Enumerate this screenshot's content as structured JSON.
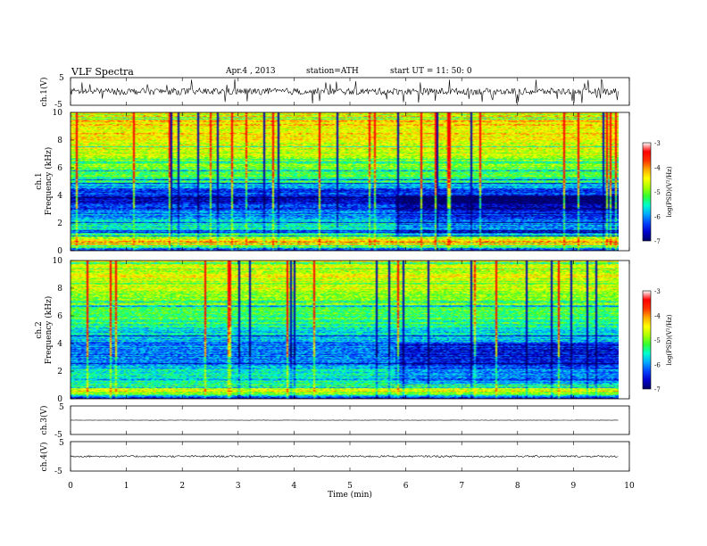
{
  "header": {
    "title": "VLF  Spectra",
    "date": "Apr.4  , 2013",
    "station": "station=ATH",
    "start": "start  UT  =   11: 50: 0"
  },
  "colors": {
    "colormap": [
      "#000066",
      "#0000cc",
      "#0044ff",
      "#00aaff",
      "#00ffcc",
      "#33ff33",
      "#aaff00",
      "#ffff00",
      "#ffaa00",
      "#ff3300",
      "#ff0000",
      "#ffffff"
    ],
    "trace": "#000000"
  },
  "chart_data": [
    {
      "type": "line",
      "panel": "ch.1",
      "ylabel": "ch.1(V)",
      "yticks": [
        "5",
        "-5"
      ],
      "ylim": [
        -5,
        5
      ],
      "xlim": [
        0,
        10
      ],
      "description_values": {
        "baseline": 0,
        "noise_amplitude": 1.2,
        "spike_amplitude": 4.5
      }
    },
    {
      "type": "heatmap",
      "panel": "ch.1",
      "ylabel_top": "ch.1",
      "ylabel": "Frequency  (kHz)",
      "yticks": [
        "10",
        "8",
        "6",
        "4",
        "2",
        "0"
      ],
      "ylim": [
        0,
        10
      ],
      "xlim": [
        0,
        10
      ],
      "data_end_min": 9.8,
      "colorbar": {
        "label": "log(PSD)(V²/Hz)",
        "ticks": [
          "-3",
          "-4",
          "-5",
          "-6",
          "-7"
        ],
        "range": [
          -7,
          -3
        ]
      },
      "frequency_profile_kHz_logPSD": [
        [
          0,
          -6.5
        ],
        [
          0.5,
          -3.6
        ],
        [
          1,
          -5.0
        ],
        [
          1.5,
          -5.6
        ],
        [
          2,
          -5.4
        ],
        [
          3,
          -6.3
        ],
        [
          4,
          -6.6
        ],
        [
          5,
          -5.2
        ],
        [
          6,
          -4.8
        ],
        [
          8,
          -4.2
        ],
        [
          10,
          -4.0
        ]
      ]
    },
    {
      "type": "heatmap",
      "panel": "ch.2",
      "ylabel_top": "ch.2",
      "ylabel": "Frequency  (kHz)",
      "yticks": [
        "10",
        "8",
        "6",
        "4",
        "2",
        "0"
      ],
      "ylim": [
        0,
        10
      ],
      "xlim": [
        0,
        10
      ],
      "data_end_min": 9.8,
      "colorbar": {
        "label": "log(PSD)(V²/Hz)",
        "ticks": [
          "-3",
          "-4",
          "-5",
          "-6",
          "-7"
        ],
        "range": [
          -7,
          -3
        ]
      },
      "frequency_profile_kHz_logPSD": [
        [
          0,
          -6.5
        ],
        [
          0.5,
          -4.0
        ],
        [
          1,
          -5.2
        ],
        [
          2,
          -5.5
        ],
        [
          3,
          -6.0
        ],
        [
          4,
          -5.9
        ],
        [
          5,
          -5.4
        ],
        [
          6,
          -5.0
        ],
        [
          8,
          -4.5
        ],
        [
          10,
          -4.3
        ]
      ]
    },
    {
      "type": "line",
      "panel": "ch.3",
      "ylabel": "ch.3(V)",
      "yticks": [
        "5",
        "-5"
      ],
      "ylim": [
        -5,
        5
      ],
      "xlim": [
        0,
        10
      ],
      "description_values": {
        "baseline": 0,
        "noise_amplitude": 0.05
      }
    },
    {
      "type": "line",
      "panel": "ch.4",
      "ylabel": "ch.4(V)",
      "yticks": [
        "5",
        "-5"
      ],
      "ylim": [
        -5,
        5
      ],
      "xlim": [
        0,
        10
      ],
      "xlabel": "Time  (min)",
      "xticks": [
        "0",
        "1",
        "2",
        "3",
        "4",
        "5",
        "6",
        "7",
        "8",
        "9",
        "10"
      ],
      "description_values": {
        "baseline": 0,
        "noise_amplitude": 0.3
      }
    }
  ]
}
